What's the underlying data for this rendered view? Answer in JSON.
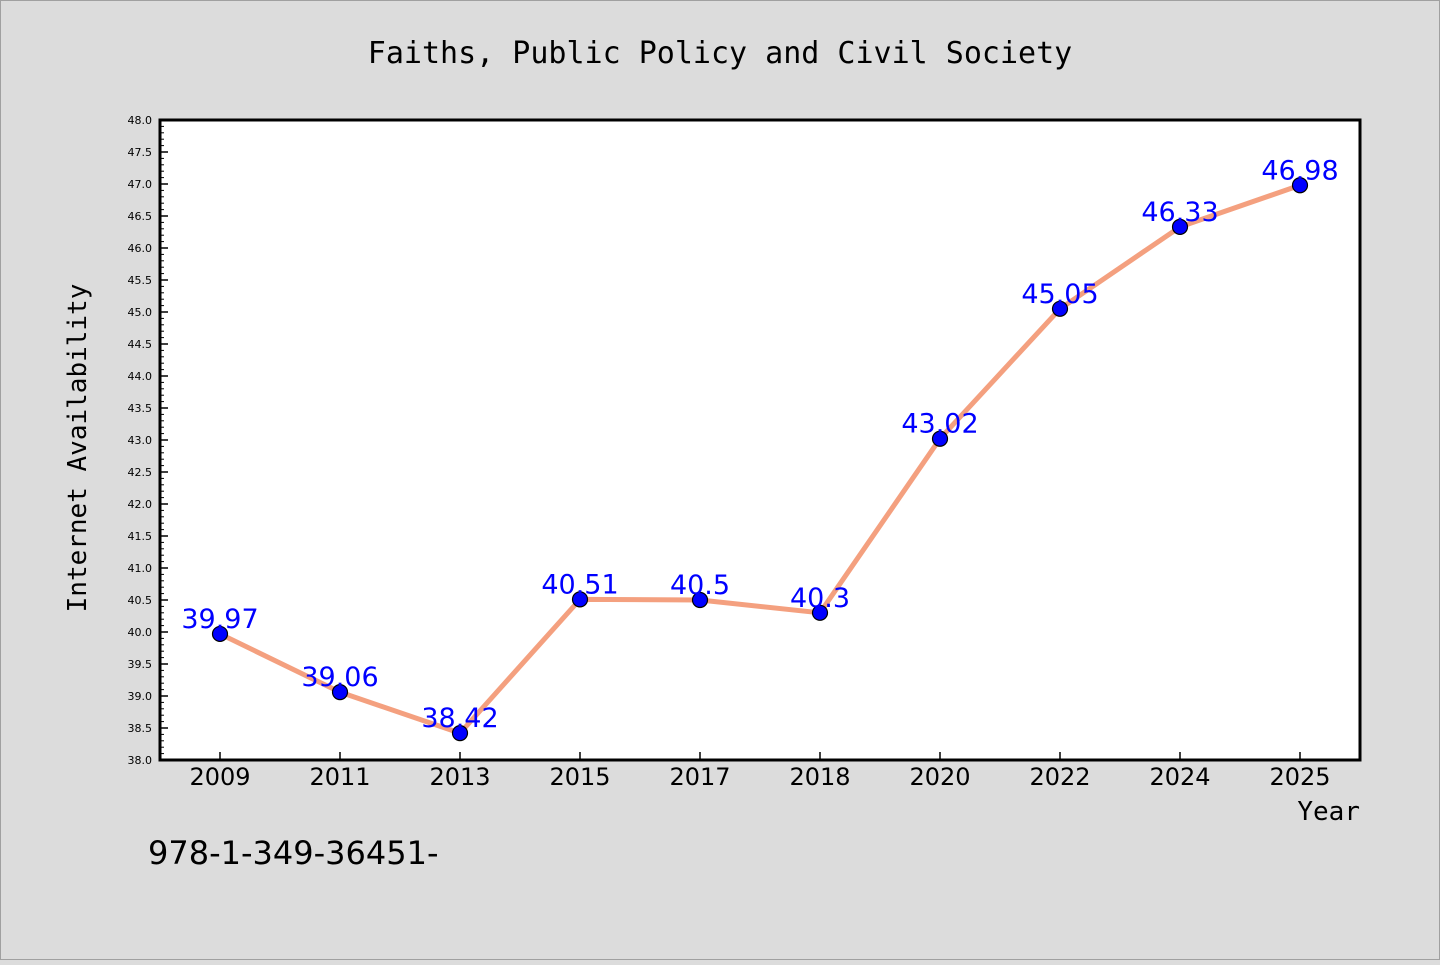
{
  "chart_data": {
    "type": "line",
    "title": "Faiths, Public Policy and Civil Society",
    "xlabel": "Year",
    "ylabel": "Internet Availability",
    "categories": [
      "2009",
      "2011",
      "2013",
      "2015",
      "2017",
      "2018",
      "2020",
      "2022",
      "2024",
      "2025"
    ],
    "series": [
      {
        "values": [
          39.97,
          39.06,
          38.42,
          40.51,
          40.5,
          40.3,
          43.02,
          45.05,
          46.33,
          46.98
        ],
        "data_labels": [
          "39.97",
          "39.06",
          "38.42",
          "40.51",
          "40.5",
          "40.3",
          "43.02",
          "45.05",
          "46.33",
          "46.98"
        ]
      }
    ],
    "ylim": [
      38.0,
      48.0
    ],
    "yticks": [
      "38.0",
      "38.5",
      "39.0",
      "39.5",
      "40.0",
      "40.5",
      "41.0",
      "41.5",
      "42.0",
      "42.5",
      "43.0",
      "43.5",
      "44.0",
      "44.5",
      "45.0",
      "45.5",
      "46.0",
      "46.5",
      "47.0",
      "47.5",
      "48.0"
    ],
    "grid": false,
    "legend": "none",
    "colors": {
      "line": "#f4a07f",
      "marker": "#0000ff",
      "label": "#0000ff",
      "background": "#dcdcdc",
      "plot_bg": "#ffffff"
    }
  },
  "footer_text": "978-1-349-36451-"
}
